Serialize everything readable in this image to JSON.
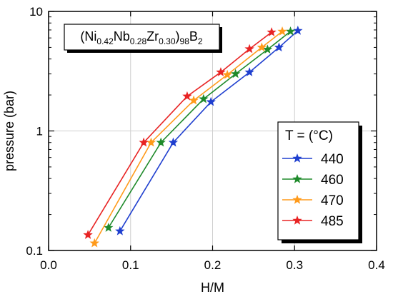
{
  "chart_data": {
    "type": "line",
    "title": "",
    "annotation": {
      "parts": [
        {
          "t": "(Ni",
          "sub": false
        },
        {
          "t": "0.42",
          "sub": true
        },
        {
          "t": "Nb",
          "sub": false
        },
        {
          "t": "0.28",
          "sub": true
        },
        {
          "t": "Zr",
          "sub": false
        },
        {
          "t": "0.30",
          "sub": true
        },
        {
          "t": ")",
          "sub": false
        },
        {
          "t": "98",
          "sub": true
        },
        {
          "t": "B",
          "sub": false
        },
        {
          "t": "2",
          "sub": true
        }
      ]
    },
    "xlabel": "H/M",
    "ylabel": "pressure (bar)",
    "xlim": [
      0.0,
      0.4
    ],
    "ylim": [
      0.1,
      10
    ],
    "yscale": "log",
    "grid": true,
    "x_ticks": [
      "0.0",
      "0.1",
      "0.2",
      "0.3",
      "0.4"
    ],
    "y_ticks": [
      "0.1",
      "1",
      "10"
    ],
    "legend": {
      "title": "T = (°C)",
      "placement": "right"
    },
    "series": [
      {
        "name": "440",
        "color": "#1f3fcf",
        "points": [
          [
            0.087,
            0.145
          ],
          [
            0.152,
            0.8
          ],
          [
            0.198,
            1.75
          ],
          [
            0.245,
            3.1
          ],
          [
            0.281,
            5.0
          ],
          [
            0.304,
            6.9
          ]
        ]
      },
      {
        "name": "460",
        "color": "#1e8a2a",
        "points": [
          [
            0.073,
            0.155
          ],
          [
            0.137,
            0.8
          ],
          [
            0.189,
            1.85
          ],
          [
            0.228,
            3.0
          ],
          [
            0.267,
            4.8
          ],
          [
            0.295,
            6.8
          ]
        ]
      },
      {
        "name": "470",
        "color": "#ff9a1a",
        "points": [
          [
            0.056,
            0.115
          ],
          [
            0.125,
            0.8
          ],
          [
            0.177,
            1.8
          ],
          [
            0.218,
            2.95
          ],
          [
            0.26,
            5.0
          ],
          [
            0.285,
            6.8
          ]
        ]
      },
      {
        "name": "485",
        "color": "#e82323",
        "points": [
          [
            0.048,
            0.135
          ],
          [
            0.116,
            0.8
          ],
          [
            0.169,
            1.95
          ],
          [
            0.21,
            3.1
          ],
          [
            0.245,
            4.85
          ],
          [
            0.272,
            6.7
          ]
        ]
      }
    ]
  }
}
